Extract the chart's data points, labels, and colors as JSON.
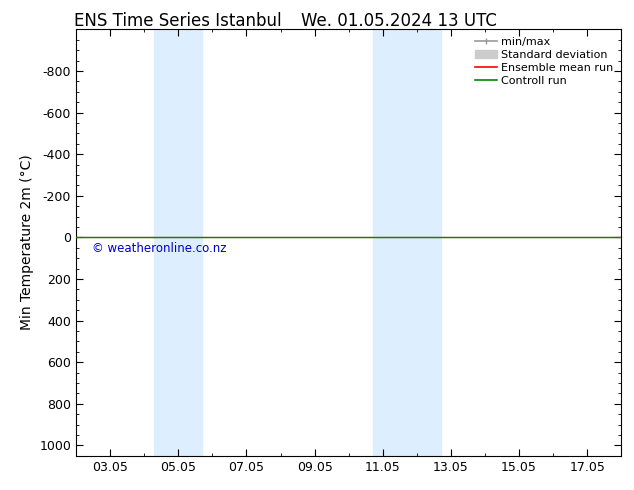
{
  "title_left": "ENS Time Series Istanbul",
  "title_right": "We. 01.05.2024 13 UTC",
  "ylabel": "Min Temperature 2m (°C)",
  "ylim_top": -1000,
  "ylim_bottom": 1050,
  "yticks": [
    -800,
    -600,
    -400,
    -200,
    0,
    200,
    400,
    600,
    800,
    1000
  ],
  "xtick_labels": [
    "03.05",
    "05.05",
    "07.05",
    "09.05",
    "11.05",
    "13.05",
    "15.05",
    "17.05"
  ],
  "xtick_positions": [
    3,
    5,
    7,
    9,
    11,
    13,
    15,
    17
  ],
  "xlim": [
    2,
    18
  ],
  "shaded_regions": [
    {
      "xmin": 4.3,
      "xmax": 5.7,
      "color": "#ddeeff",
      "alpha": 1.0
    },
    {
      "xmin": 10.7,
      "xmax": 12.7,
      "color": "#ddeeff",
      "alpha": 1.0
    }
  ],
  "control_run_y": 0,
  "control_run_color": "#008800",
  "ensemble_mean_color": "#ff0000",
  "watermark": "© weatheronline.co.nz",
  "watermark_color": "#0000cc",
  "background_color": "#ffffff",
  "legend_labels": [
    "min/max",
    "Standard deviation",
    "Ensemble mean run",
    "Controll run"
  ],
  "minmax_color": "#999999",
  "stddev_color": "#cccccc",
  "title_fontsize": 12,
  "axis_label_fontsize": 10,
  "tick_fontsize": 9,
  "legend_fontsize": 8
}
